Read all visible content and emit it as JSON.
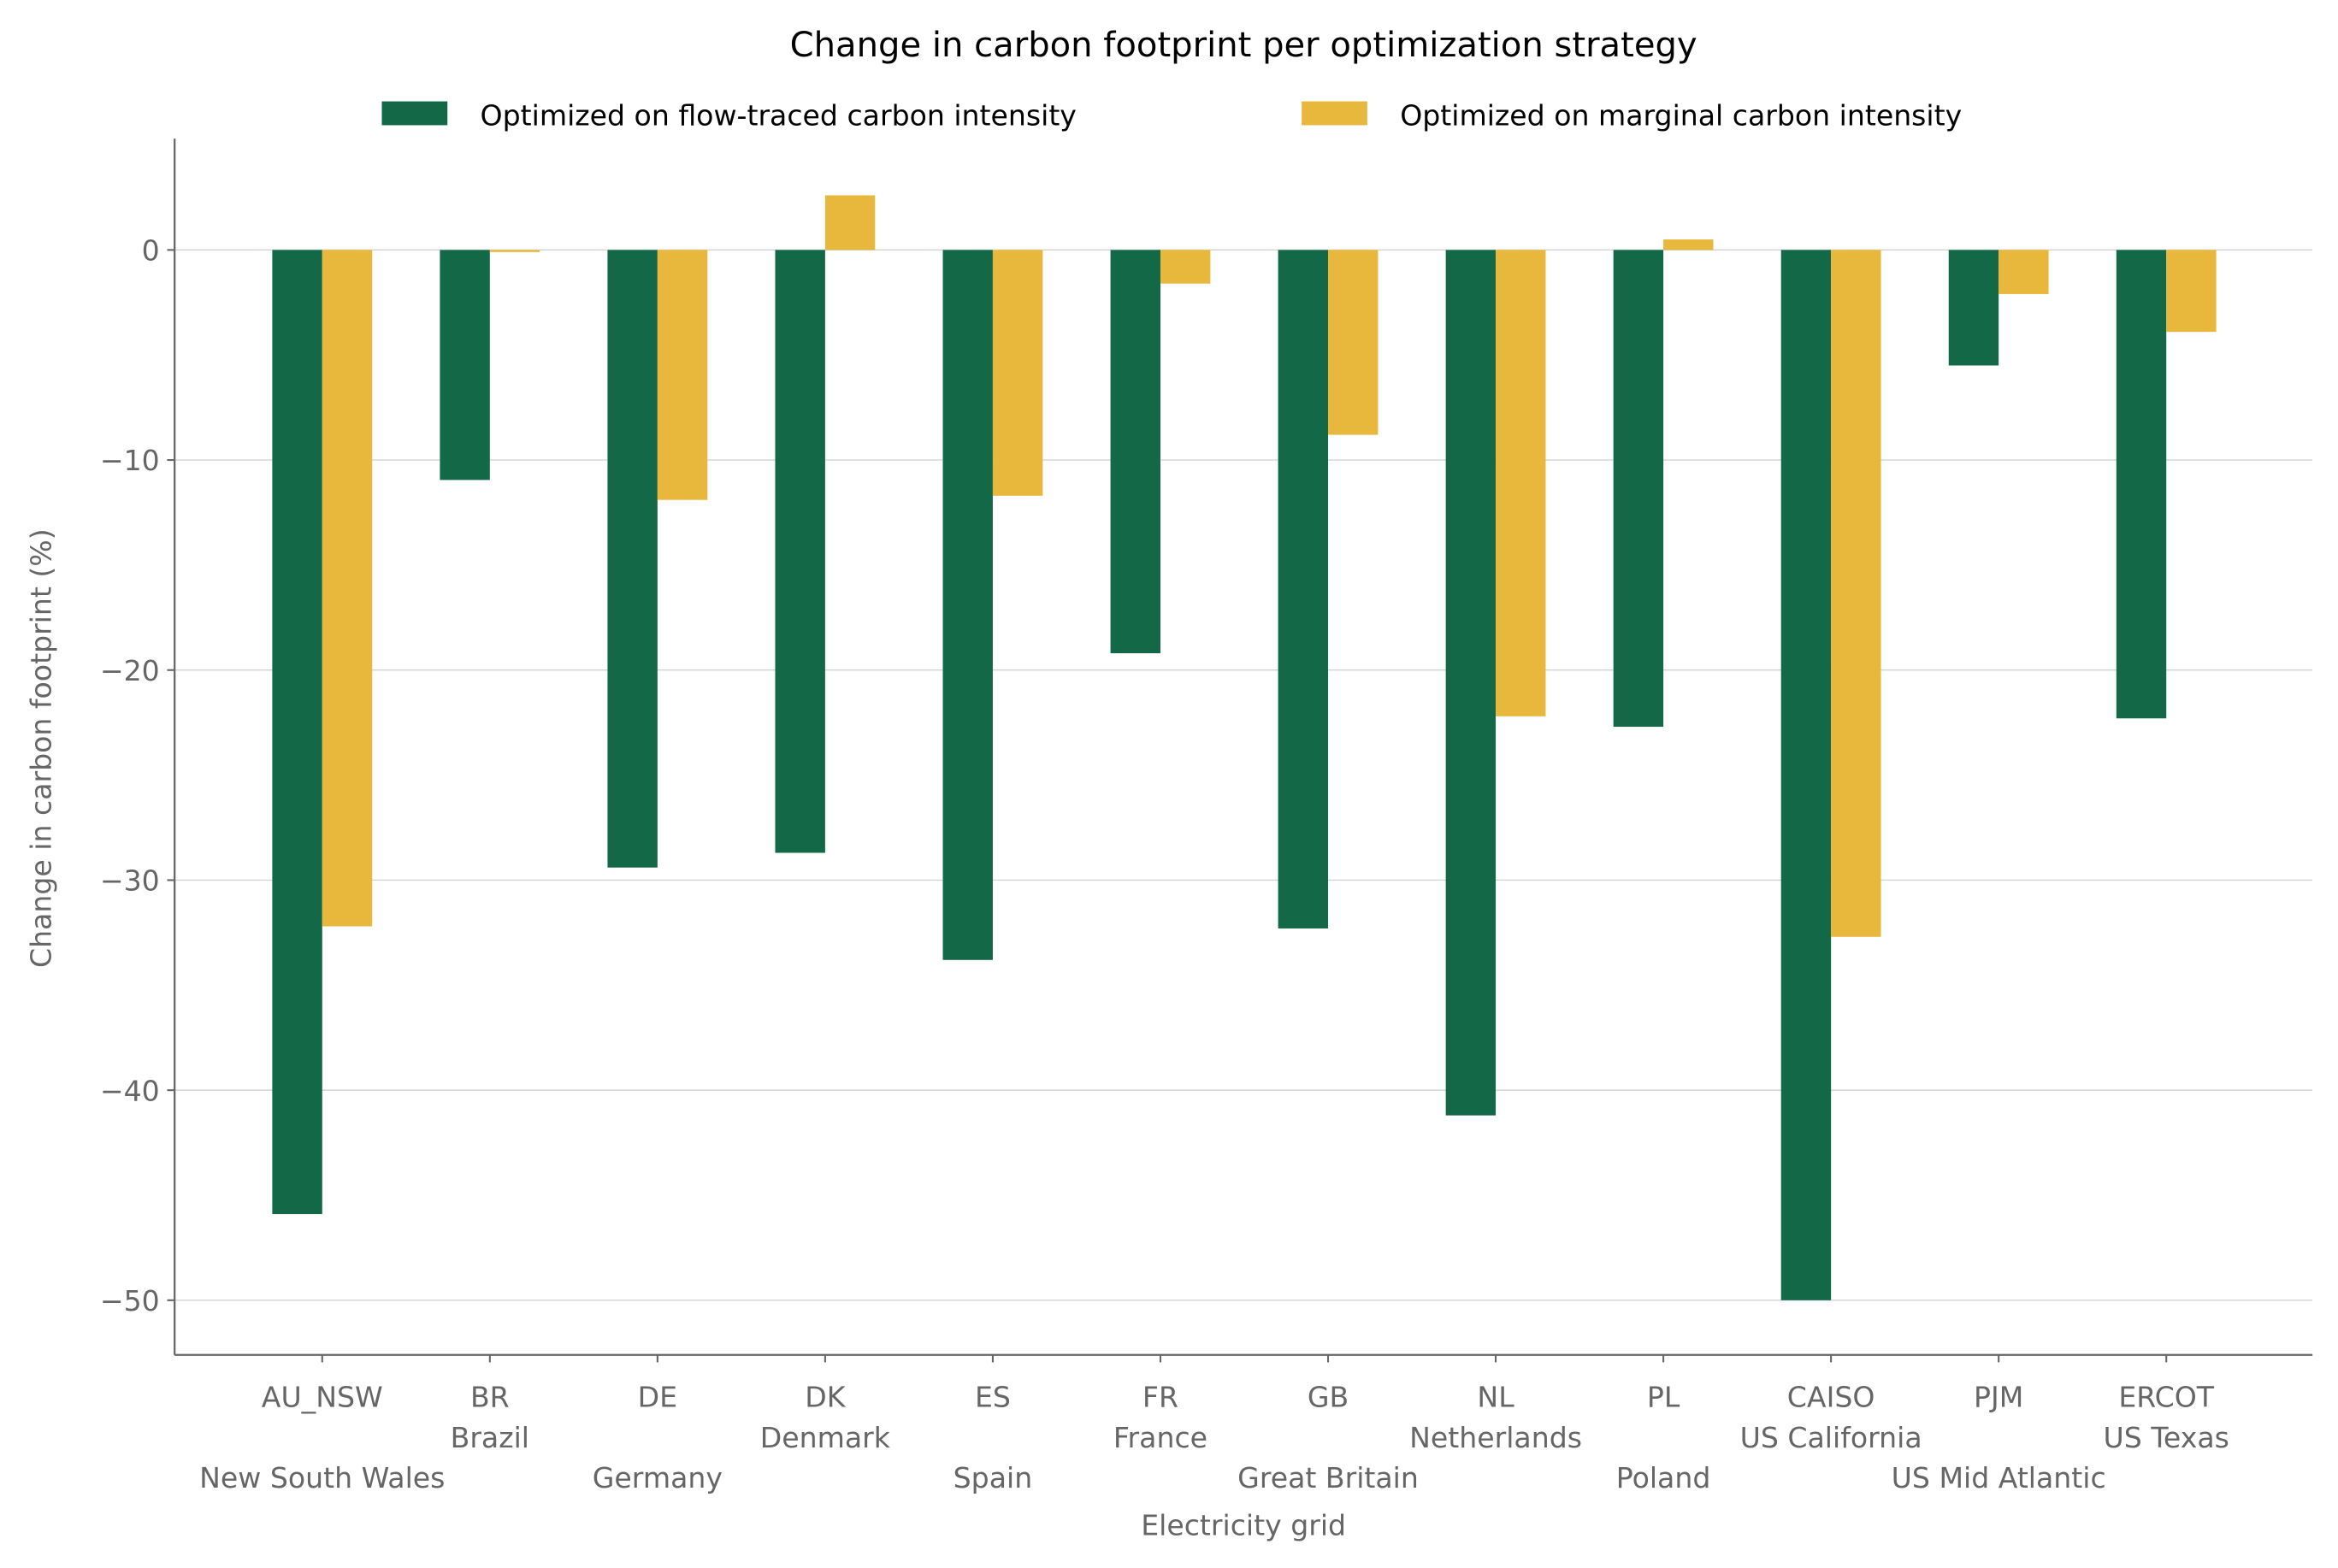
{
  "chart_data": {
    "type": "bar",
    "title": "Change in carbon footprint per optimization strategy",
    "xlabel": "Electricity grid",
    "ylabel": "Change in carbon footprint (%)",
    "categories": [
      "AU_NSW",
      "BR",
      "DE",
      "DK",
      "ES",
      "FR",
      "GB",
      "NL",
      "PL",
      "CAISO",
      "PJM",
      "ERCOT"
    ],
    "category_names": [
      "New South Wales",
      "Brazil",
      "Germany",
      "Denmark",
      "Spain",
      "France",
      "Great Britain",
      "Netherlands",
      "Poland",
      "US California",
      "US Mid Atlantic",
      "US Texas"
    ],
    "series": [
      {
        "name": "Optimized on flow-traced carbon intensity",
        "color": "#136848",
        "values": [
          -45.9,
          -10.95,
          -29.4,
          -28.7,
          -33.8,
          -19.2,
          -32.3,
          -41.2,
          -22.7,
          -50.0,
          -5.5,
          -22.3
        ]
      },
      {
        "name": "Optimized on marginal carbon intensity",
        "color": "#E8B83C",
        "values": [
          -32.2,
          -0.1,
          -11.9,
          2.6,
          -11.7,
          -1.6,
          -8.8,
          -22.2,
          0.5,
          -32.7,
          -2.1,
          -3.9
        ]
      }
    ],
    "yticks": [
      0,
      -10,
      -20,
      -30,
      -40,
      -50
    ],
    "ytick_labels": [
      "0",
      "−10",
      "−20",
      "−30",
      "−40",
      "−50"
    ],
    "ylim": [
      -52.6,
      5.3
    ],
    "grid": "horizontal",
    "legend_placement": "top-center"
  }
}
